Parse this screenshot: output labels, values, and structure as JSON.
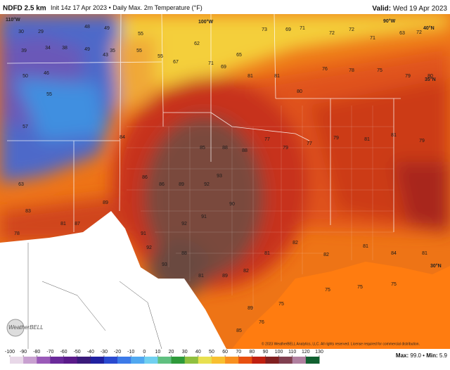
{
  "header": {
    "model": "NDFD 2.5 km",
    "init": "Init 14z 17 Apr 2023",
    "separator": "•",
    "field": "Daily Max. 2m Temperature (°F)",
    "valid_label": "Valid:",
    "valid_date": "Wed 19 Apr 2023"
  },
  "map": {
    "grid_labels": [
      "110°W",
      "100°W",
      "90°W",
      "40°N",
      "35°N",
      "30°N"
    ],
    "temps": [
      30,
      29,
      39,
      34,
      38,
      48,
      49,
      49,
      43,
      35,
      55,
      55,
      55,
      67,
      62,
      71,
      69,
      65,
      73,
      69,
      71,
      72,
      72,
      71,
      63,
      72,
      50,
      46,
      55,
      57,
      63,
      83,
      78,
      81,
      87,
      89,
      84,
      86,
      86,
      89,
      85,
      88,
      88,
      77,
      79,
      77,
      79,
      81,
      81,
      79,
      93,
      92,
      90,
      91,
      92,
      91,
      92,
      93,
      88,
      81,
      89,
      82,
      81,
      82,
      82,
      81,
      84,
      81,
      81,
      81,
      80,
      76,
      78,
      75,
      79,
      80,
      75,
      75,
      75,
      75,
      89,
      85,
      76
    ],
    "logo": "WeatherBELL"
  },
  "footer": {
    "copyright": "© 2023 WeatherBELL Analytics, LLC. All rights reserved. License required for commercial distribution.",
    "max_label": "Max:",
    "max": "99.0",
    "min_label": "Min:",
    "min": "5.9",
    "scale_ticks": [
      -100,
      -90,
      -80,
      -70,
      -60,
      -50,
      -40,
      -30,
      -20,
      -10,
      0,
      10,
      20,
      30,
      40,
      50,
      60,
      70,
      80,
      90,
      100,
      110,
      120,
      130
    ]
  }
}
